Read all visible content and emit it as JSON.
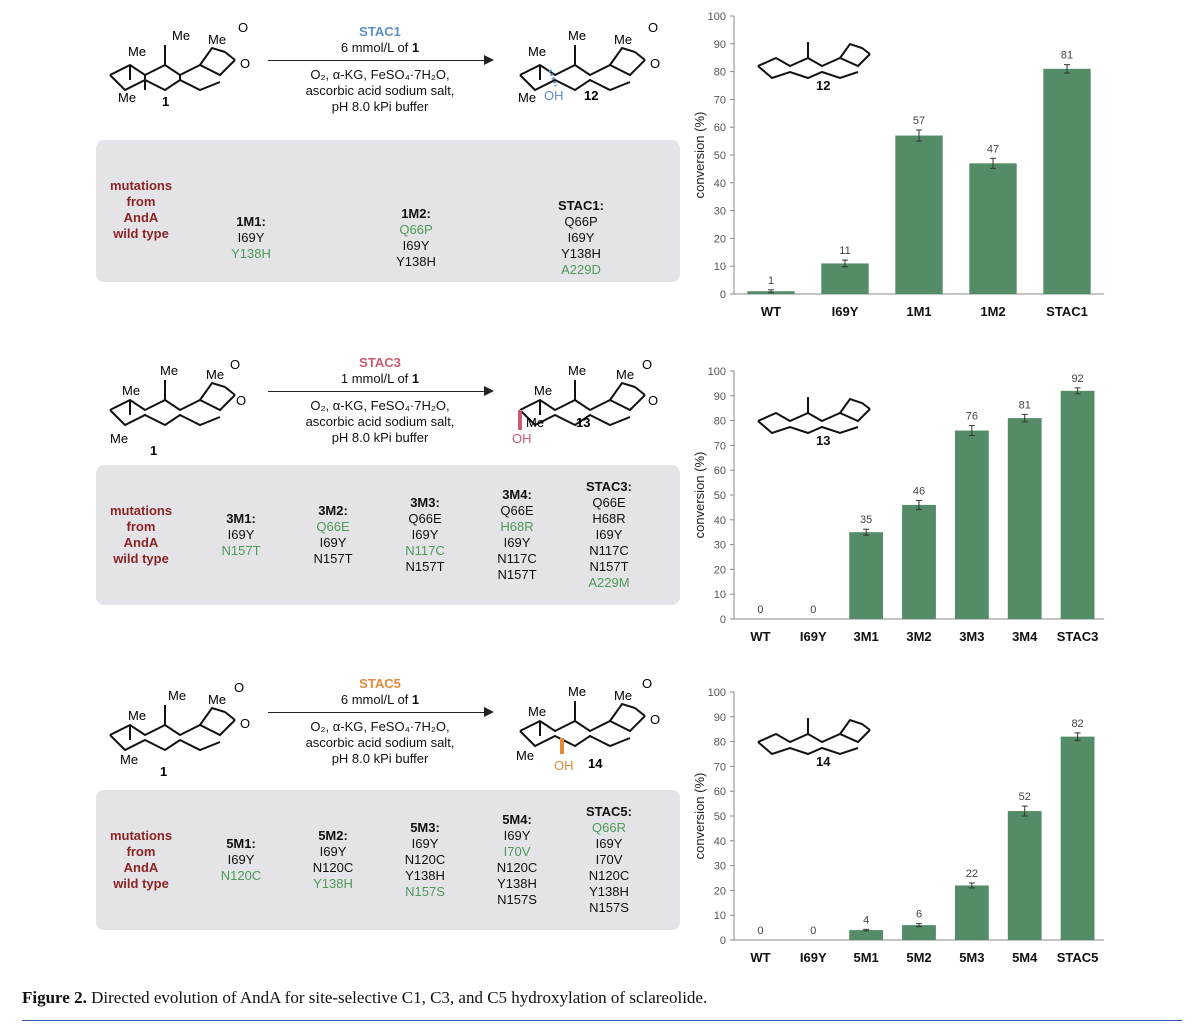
{
  "colors": {
    "stac1": "#5b8fc9",
    "stac3": "#c95b72",
    "stac5": "#e08a3a",
    "bar": "#548c68",
    "mutation_label": "#8b2424",
    "new_mutation": "#4e9a56",
    "box": "#e4e4e8"
  },
  "atoms": {
    "me": "Me",
    "oh": "OH",
    "o": "O"
  },
  "panels": [
    {
      "catalyst": "STAC1",
      "substrate_label": "1",
      "product_label": "12",
      "conditions": {
        "line1_pre": "6 mmol/L of ",
        "line1_bold": "1",
        "line2": "O₂, α-KG, FeSO₄·7H₂O,",
        "line3": "ascorbic acid sodium salt,",
        "line4": "pH 8.0 kPi buffer"
      },
      "mutation_label": [
        "mutations",
        "from",
        "AndA",
        "wild type"
      ],
      "variants": [
        {
          "name": "1M1:",
          "mutations": [
            {
              "text": "I69Y",
              "new": false
            },
            {
              "text": "Y138H",
              "new": true
            }
          ]
        },
        {
          "name": "1M2:",
          "mutations": [
            {
              "text": "Q66P",
              "new": true
            },
            {
              "text": "I69Y",
              "new": false
            },
            {
              "text": "Y138H",
              "new": false
            }
          ]
        },
        {
          "name": "STAC1:",
          "mutations": [
            {
              "text": "Q66P",
              "new": false
            },
            {
              "text": "I69Y",
              "new": false
            },
            {
              "text": "Y138H",
              "new": false
            },
            {
              "text": "A229D",
              "new": true
            }
          ]
        }
      ]
    },
    {
      "catalyst": "STAC3",
      "substrate_label": "1",
      "product_label": "13",
      "conditions": {
        "line1_pre": "1 mmol/L of ",
        "line1_bold": "1",
        "line2": "O₂, α-KG, FeSO₄·7H₂O,",
        "line3": "ascorbic acid sodium salt,",
        "line4": "pH 8.0 kPi buffer"
      },
      "mutation_label": [
        "mutations",
        "from",
        "AndA",
        "wild type"
      ],
      "variants": [
        {
          "name": "3M1:",
          "mutations": [
            {
              "text": "I69Y",
              "new": false
            },
            {
              "text": "N157T",
              "new": true
            }
          ]
        },
        {
          "name": "3M2:",
          "mutations": [
            {
              "text": "Q66E",
              "new": true
            },
            {
              "text": "I69Y",
              "new": false
            },
            {
              "text": "N157T",
              "new": false
            }
          ]
        },
        {
          "name": "3M3:",
          "mutations": [
            {
              "text": "Q66E",
              "new": false
            },
            {
              "text": "I69Y",
              "new": false
            },
            {
              "text": "N117C",
              "new": true
            },
            {
              "text": "N157T",
              "new": false
            }
          ]
        },
        {
          "name": "3M4:",
          "mutations": [
            {
              "text": "Q66E",
              "new": false
            },
            {
              "text": "H68R",
              "new": true
            },
            {
              "text": "I69Y",
              "new": false
            },
            {
              "text": "N117C",
              "new": false
            },
            {
              "text": "N157T",
              "new": false
            }
          ]
        },
        {
          "name": "STAC3:",
          "mutations": [
            {
              "text": "Q66E",
              "new": false
            },
            {
              "text": "H68R",
              "new": false
            },
            {
              "text": "I69Y",
              "new": false
            },
            {
              "text": "N117C",
              "new": false
            },
            {
              "text": "N157T",
              "new": false
            },
            {
              "text": "A229M",
              "new": true
            }
          ]
        }
      ]
    },
    {
      "catalyst": "STAC5",
      "substrate_label": "1",
      "product_label": "14",
      "conditions": {
        "line1_pre": "6 mmol/L of ",
        "line1_bold": "1",
        "line2": "O₂, α-KG, FeSO₄·7H₂O,",
        "line3": "ascorbic acid sodium salt,",
        "line4": "pH 8.0 kPi buffer"
      },
      "mutation_label": [
        "mutations",
        "from",
        "AndA",
        "wild type"
      ],
      "variants": [
        {
          "name": "5M1:",
          "mutations": [
            {
              "text": "I69Y",
              "new": false
            },
            {
              "text": "N120C",
              "new": true
            }
          ]
        },
        {
          "name": "5M2:",
          "mutations": [
            {
              "text": "I69Y",
              "new": false
            },
            {
              "text": "N120C",
              "new": false
            },
            {
              "text": "Y138H",
              "new": true
            }
          ]
        },
        {
          "name": "5M3:",
          "mutations": [
            {
              "text": "I69Y",
              "new": false
            },
            {
              "text": "N120C",
              "new": false
            },
            {
              "text": "Y138H",
              "new": false
            },
            {
              "text": "N157S",
              "new": true
            }
          ]
        },
        {
          "name": "5M4:",
          "mutations": [
            {
              "text": "I69Y",
              "new": false
            },
            {
              "text": "I70V",
              "new": true
            },
            {
              "text": "N120C",
              "new": false
            },
            {
              "text": "Y138H",
              "new": false
            },
            {
              "text": "N157S",
              "new": false
            }
          ]
        },
        {
          "name": "STAC5:",
          "mutations": [
            {
              "text": "Q66R",
              "new": true
            },
            {
              "text": "I69Y",
              "new": false
            },
            {
              "text": "I70V",
              "new": false
            },
            {
              "text": "N120C",
              "new": false
            },
            {
              "text": "Y138H",
              "new": false
            },
            {
              "text": "N157S",
              "new": false
            }
          ]
        }
      ]
    }
  ],
  "chart_data": [
    {
      "type": "bar",
      "categories": [
        "WT",
        "I69Y",
        "1M1",
        "1M2",
        "STAC1"
      ],
      "values": [
        1,
        11,
        57,
        47,
        81
      ],
      "errors": [
        0.5,
        1.2,
        2.0,
        1.8,
        1.5
      ],
      "ylabel": "conversion (%)",
      "ylim": [
        0,
        100
      ],
      "yticks": [
        0,
        10,
        20,
        30,
        40,
        50,
        60,
        70,
        80,
        90,
        100
      ],
      "inset_label": "12",
      "grid": false
    },
    {
      "type": "bar",
      "categories": [
        "WT",
        "I69Y",
        "3M1",
        "3M2",
        "3M3",
        "3M4",
        "STAC3"
      ],
      "values": [
        0,
        0,
        35,
        46,
        76,
        81,
        92
      ],
      "errors": [
        0,
        0,
        1.2,
        1.8,
        2.0,
        1.5,
        1.2
      ],
      "ylabel": "conversion (%)",
      "ylim": [
        0,
        100
      ],
      "yticks": [
        0,
        10,
        20,
        30,
        40,
        50,
        60,
        70,
        80,
        90,
        100
      ],
      "inset_label": "13",
      "grid": false
    },
    {
      "type": "bar",
      "categories": [
        "WT",
        "I69Y",
        "5M1",
        "5M2",
        "5M3",
        "5M4",
        "STAC5"
      ],
      "values": [
        0,
        0,
        4,
        6,
        22,
        52,
        82
      ],
      "errors": [
        0,
        0,
        0.3,
        0.6,
        1.0,
        2.0,
        1.5
      ],
      "ylabel": "conversion (%)",
      "ylim": [
        0,
        100
      ],
      "yticks": [
        0,
        10,
        20,
        30,
        40,
        50,
        60,
        70,
        80,
        90,
        100
      ],
      "inset_label": "14",
      "grid": false
    }
  ],
  "caption": {
    "label": "Figure 2.",
    "text": " Directed evolution of AndA for site-selective C1, C3, and C5 hydroxylation of sclareolide."
  }
}
